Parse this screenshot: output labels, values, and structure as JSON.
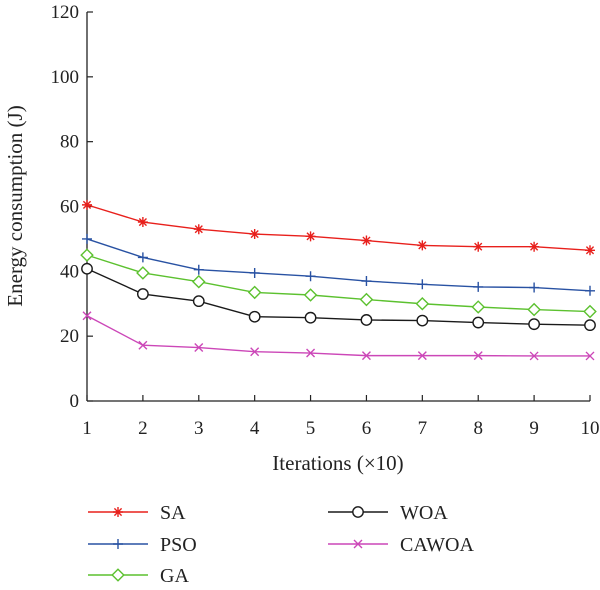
{
  "chart_data": {
    "type": "line",
    "xlabel": "Iterations (×10)",
    "ylabel": "Energy consumption (J)",
    "x": [
      1,
      2,
      3,
      4,
      5,
      6,
      7,
      8,
      9,
      10
    ],
    "xlim": [
      1,
      10
    ],
    "ylim": [
      0,
      120
    ],
    "xticks": [
      1,
      2,
      3,
      4,
      5,
      6,
      7,
      8,
      9,
      10
    ],
    "yticks": [
      0,
      20,
      40,
      60,
      80,
      100,
      120
    ],
    "grid": false,
    "legend": "bottom",
    "series": [
      {
        "name": "SA",
        "color": "#e8201c",
        "marker": "star",
        "values": [
          60.5,
          55.2,
          53.0,
          51.5,
          50.8,
          49.5,
          48.0,
          47.6,
          47.6,
          46.5
        ]
      },
      {
        "name": "PSO",
        "color": "#2952a3",
        "marker": "plus",
        "values": [
          50.0,
          44.3,
          40.5,
          39.5,
          38.5,
          37.0,
          36.0,
          35.2,
          35.0,
          34.0
        ]
      },
      {
        "name": "GA",
        "color": "#5cc12f",
        "marker": "diamond",
        "values": [
          45.0,
          39.5,
          36.8,
          33.5,
          32.7,
          31.3,
          30.0,
          29.0,
          28.2,
          27.6
        ]
      },
      {
        "name": "WOA",
        "color": "#1a1a1a",
        "marker": "circle",
        "values": [
          40.8,
          33.0,
          30.8,
          26.0,
          25.7,
          25.0,
          24.8,
          24.2,
          23.7,
          23.4
        ]
      },
      {
        "name": "CAWOA",
        "color": "#cc47b8",
        "marker": "x",
        "values": [
          26.3,
          17.2,
          16.5,
          15.2,
          14.8,
          14.0,
          14.0,
          14.0,
          13.9,
          13.9
        ]
      }
    ]
  }
}
